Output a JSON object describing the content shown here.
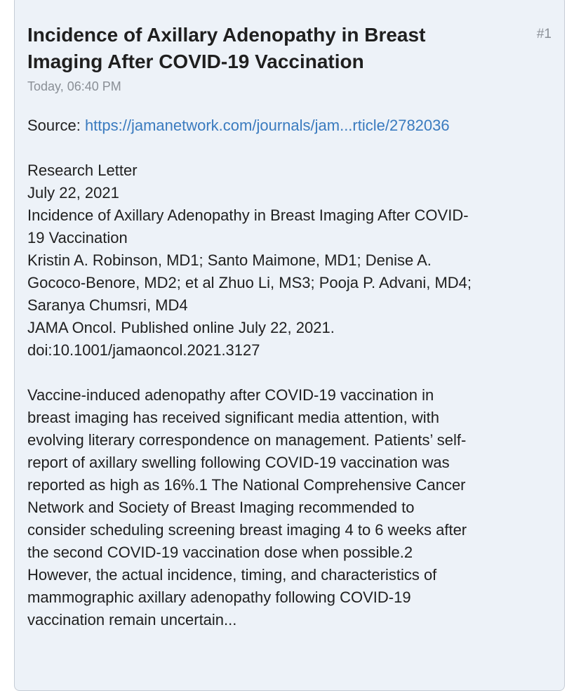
{
  "post": {
    "number": "#1",
    "title": "Incidence of Axillary Adenopathy in Breast Imaging After COVID-19 Vaccination",
    "time": "Today, 06:40 PM",
    "source_label": "Source: ",
    "source_link": "https://jamanetwork.com/journals/jam...rticle/2782036",
    "lines": [
      "Research Letter",
      "July 22, 2021",
      "Incidence of Axillary Adenopathy in Breast Imaging After COVID-",
      "19 Vaccination",
      "Kristin A. Robinson, MD1; Santo Maimone, MD1; Denise A.",
      "Gococo-Benore, MD2; et al Zhuo Li, MS3; Pooja P. Advani, MD4;",
      "Saranya Chumsri, MD4",
      "JAMA Oncol. Published online July 22, 2021.",
      "doi:10.1001/jamaoncol.2021.3127"
    ],
    "abstract_lines": [
      "Vaccine-induced adenopathy after COVID-19 vaccination in",
      "breast imaging has received significant media attention, with",
      "evolving literary correspondence on management. Patients’ self-",
      "report of axillary swelling following COVID-19 vaccination was",
      "reported as high as 16%.1 The National Comprehensive Cancer",
      "Network and Society of Breast Imaging recommended to",
      "consider scheduling screening breast imaging 4 to 6 weeks after",
      "the second COVID-19 vaccination dose when possible.2",
      "However, the actual incidence, timing, and characteristics of",
      "mammographic axillary adenopathy following COVID-19",
      "vaccination remain uncertain..."
    ]
  }
}
